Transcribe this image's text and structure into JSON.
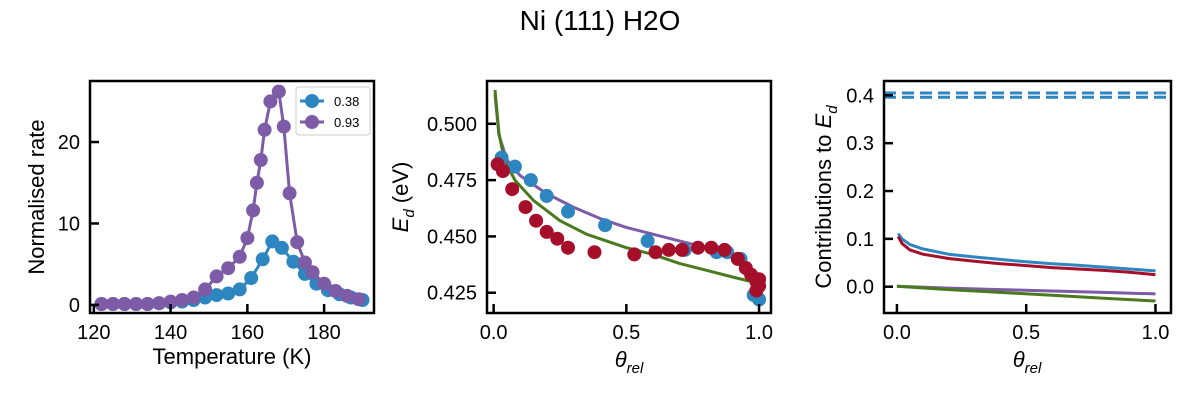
{
  "figure": {
    "title": "Ni (111) H2O"
  },
  "colors": {
    "blue": "#2E86C1",
    "purple": "#7D5BA6",
    "red": "#A50F2A",
    "green": "#4A7A1E"
  },
  "chart_data": [
    {
      "type": "line",
      "xlabel": "Temperature (K)",
      "ylabel": "Normalised rate",
      "xlim": [
        119,
        193
      ],
      "ylim": [
        -1,
        27.5
      ],
      "xticks": [
        120,
        140,
        160,
        180
      ],
      "yticks": [
        0,
        10,
        20
      ],
      "legend": "top-right",
      "series": [
        {
          "name": "0.38",
          "color": "blue",
          "markers": true,
          "points": [
            [
              122,
              0.1
            ],
            [
              125,
              0.1
            ],
            [
              128,
              0.1
            ],
            [
              131,
              0.1
            ],
            [
              134,
              0.1
            ],
            [
              137,
              0.2
            ],
            [
              140,
              0.3
            ],
            [
              143,
              0.4
            ],
            [
              146,
              0.6
            ],
            [
              149,
              0.9
            ],
            [
              152,
              1.2
            ],
            [
              155,
              1.4
            ],
            [
              158,
              1.9
            ],
            [
              161,
              3.3
            ],
            [
              164,
              5.6
            ],
            [
              166.5,
              7.8
            ],
            [
              169,
              7.0
            ],
            [
              172,
              5.3
            ],
            [
              175,
              3.8
            ],
            [
              178,
              2.6
            ],
            [
              181,
              1.8
            ],
            [
              184,
              1.3
            ],
            [
              187,
              0.9
            ],
            [
              190,
              0.6
            ]
          ]
        },
        {
          "name": "0.93",
          "color": "purple",
          "markers": true,
          "points": [
            [
              122,
              0.1
            ],
            [
              125,
              0.1
            ],
            [
              128,
              0.1
            ],
            [
              131,
              0.1
            ],
            [
              134,
              0.1
            ],
            [
              137,
              0.2
            ],
            [
              140,
              0.4
            ],
            [
              143,
              0.6
            ],
            [
              146,
              0.9
            ],
            [
              149,
              1.9
            ],
            [
              152,
              3.5
            ],
            [
              155,
              4.5
            ],
            [
              158,
              5.9
            ],
            [
              160,
              8.2
            ],
            [
              161.5,
              11.6
            ],
            [
              162.5,
              15.0
            ],
            [
              163.5,
              17.8
            ],
            [
              164.5,
              21.5
            ],
            [
              166,
              25.0
            ],
            [
              168.2,
              26.2
            ],
            [
              169.5,
              21.9
            ],
            [
              171,
              13.7
            ],
            [
              173,
              7.7
            ],
            [
              175,
              5.2
            ],
            [
              177,
              4.0
            ],
            [
              180,
              2.6
            ],
            [
              183,
              1.7
            ],
            [
              186,
              1.1
            ],
            [
              189,
              0.7
            ]
          ]
        }
      ]
    },
    {
      "type": "scatter",
      "xlabel": "θrel",
      "ylabel": "Ed (eV)",
      "xlim": [
        -0.025,
        1.045
      ],
      "ylim": [
        0.416,
        0.519
      ],
      "xticks": [
        0.0,
        0.5,
        1.0
      ],
      "yticks": [
        0.425,
        0.45,
        0.475,
        0.5
      ],
      "scatter_series": [
        {
          "color": "blue",
          "points": [
            [
              0.03,
              0.485
            ],
            [
              0.08,
              0.481
            ],
            [
              0.14,
              0.475
            ],
            [
              0.2,
              0.468
            ],
            [
              0.28,
              0.461
            ],
            [
              0.42,
              0.455
            ],
            [
              0.58,
              0.448
            ],
            [
              0.72,
              0.444
            ],
            [
              0.84,
              0.443
            ],
            [
              0.88,
              0.443
            ],
            [
              0.93,
              0.44
            ],
            [
              0.98,
              0.424
            ],
            [
              1.0,
              0.422
            ]
          ]
        },
        {
          "color": "red",
          "points": [
            [
              0.015,
              0.482
            ],
            [
              0.035,
              0.479
            ],
            [
              0.07,
              0.471
            ],
            [
              0.12,
              0.463
            ],
            [
              0.16,
              0.457
            ],
            [
              0.2,
              0.452
            ],
            [
              0.24,
              0.449
            ],
            [
              0.28,
              0.445
            ],
            [
              0.38,
              0.443
            ],
            [
              0.53,
              0.442
            ],
            [
              0.61,
              0.443
            ],
            [
              0.66,
              0.444
            ],
            [
              0.71,
              0.444
            ],
            [
              0.77,
              0.445
            ],
            [
              0.82,
              0.445
            ],
            [
              0.87,
              0.444
            ],
            [
              0.92,
              0.44
            ],
            [
              0.95,
              0.436
            ],
            [
              0.97,
              0.433
            ],
            [
              0.99,
              0.43
            ],
            [
              1.0,
              0.431
            ],
            [
              1.0,
              0.428
            ],
            [
              0.99,
              0.426
            ]
          ]
        }
      ],
      "line_series": [
        {
          "color": "purple",
          "points": [
            [
              0.005,
              0.513
            ],
            [
              0.02,
              0.495
            ],
            [
              0.05,
              0.484
            ],
            [
              0.1,
              0.477
            ],
            [
              0.2,
              0.469
            ],
            [
              0.3,
              0.463
            ],
            [
              0.4,
              0.458
            ],
            [
              0.5,
              0.454
            ],
            [
              0.6,
              0.451
            ],
            [
              0.7,
              0.448
            ],
            [
              0.8,
              0.445
            ],
            [
              0.9,
              0.442
            ],
            [
              0.95,
              0.438
            ],
            [
              0.97,
              0.434
            ],
            [
              0.99,
              0.429
            ],
            [
              1.0,
              0.426
            ]
          ]
        },
        {
          "color": "green",
          "points": [
            [
              0.005,
              0.515
            ],
            [
              0.02,
              0.496
            ],
            [
              0.04,
              0.484
            ],
            [
              0.08,
              0.475
            ],
            [
              0.15,
              0.466
            ],
            [
              0.25,
              0.457
            ],
            [
              0.35,
              0.451
            ],
            [
              0.5,
              0.445
            ],
            [
              0.6,
              0.442
            ],
            [
              0.7,
              0.438
            ],
            [
              0.8,
              0.435
            ],
            [
              0.9,
              0.432
            ],
            [
              0.97,
              0.43
            ],
            [
              1.0,
              0.429
            ]
          ]
        }
      ]
    },
    {
      "type": "line",
      "xlabel": "θrel",
      "ylabel": "Contributions to Ed",
      "xlim": [
        -0.05,
        1.06
      ],
      "ylim": [
        -0.055,
        0.43
      ],
      "xticks": [
        0.0,
        0.5,
        1.0
      ],
      "yticks": [
        0.0,
        0.1,
        0.2,
        0.3,
        0.4
      ],
      "hlines": [
        {
          "y": 0.405,
          "color": "blue",
          "style": "dashed"
        },
        {
          "y": 0.396,
          "color": "blue",
          "style": "dashed"
        }
      ],
      "series": [
        {
          "color": "blue",
          "points": [
            [
              0.005,
              0.111
            ],
            [
              0.02,
              0.1
            ],
            [
              0.05,
              0.088
            ],
            [
              0.1,
              0.079
            ],
            [
              0.2,
              0.068
            ],
            [
              0.3,
              0.062
            ],
            [
              0.4,
              0.057
            ],
            [
              0.5,
              0.052
            ],
            [
              0.6,
              0.048
            ],
            [
              0.7,
              0.045
            ],
            [
              0.8,
              0.041
            ],
            [
              0.9,
              0.037
            ],
            [
              1.0,
              0.033
            ]
          ]
        },
        {
          "color": "red",
          "points": [
            [
              0.005,
              0.105
            ],
            [
              0.02,
              0.09
            ],
            [
              0.05,
              0.077
            ],
            [
              0.1,
              0.068
            ],
            [
              0.2,
              0.059
            ],
            [
              0.3,
              0.053
            ],
            [
              0.4,
              0.048
            ],
            [
              0.5,
              0.044
            ],
            [
              0.6,
              0.04
            ],
            [
              0.7,
              0.037
            ],
            [
              0.8,
              0.034
            ],
            [
              0.9,
              0.03
            ],
            [
              1.0,
              0.025
            ]
          ]
        },
        {
          "color": "purple",
          "points": [
            [
              0.0,
              0.001
            ],
            [
              0.2,
              -0.003
            ],
            [
              0.4,
              -0.006
            ],
            [
              0.6,
              -0.009
            ],
            [
              0.8,
              -0.012
            ],
            [
              1.0,
              -0.015
            ]
          ]
        },
        {
          "color": "green",
          "points": [
            [
              0.0,
              0.001
            ],
            [
              0.2,
              -0.006
            ],
            [
              0.4,
              -0.012
            ],
            [
              0.6,
              -0.018
            ],
            [
              0.8,
              -0.024
            ],
            [
              1.0,
              -0.03
            ]
          ]
        }
      ]
    }
  ]
}
